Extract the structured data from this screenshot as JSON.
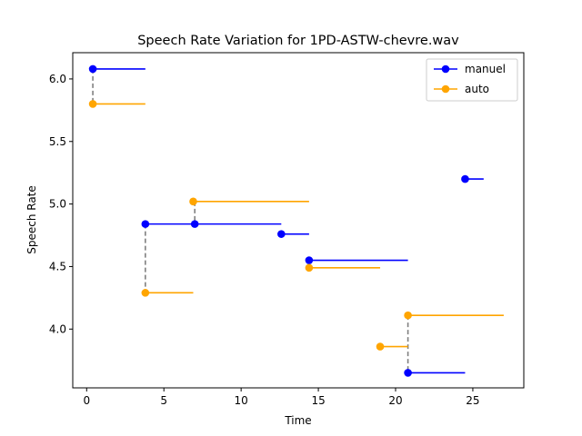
{
  "chart_data": {
    "type": "line",
    "title": "Speech Rate Variation for 1PD-ASTW-chevre.wav",
    "xlabel": "Time",
    "ylabel": "Speech Rate",
    "xlim": [
      -0.9,
      28.3
    ],
    "ylim": [
      3.53,
      6.21
    ],
    "xticks": [
      0,
      5,
      10,
      15,
      20,
      25
    ],
    "yticks": [
      4.0,
      4.5,
      5.0,
      5.5,
      6.0
    ],
    "xtick_labels": [
      "0",
      "5",
      "10",
      "15",
      "20",
      "25"
    ],
    "ytick_labels": [
      "4.0",
      "4.5",
      "5.0",
      "5.5",
      "6.0"
    ],
    "legend_position": "top-right",
    "series": [
      {
        "name": "manuel",
        "color": "#0000ff",
        "segments": [
          {
            "start": 0.4,
            "end": 3.8,
            "rate": 6.08
          },
          {
            "start": 3.8,
            "end": 7.0,
            "rate": 4.84
          },
          {
            "start": 7.0,
            "end": 12.6,
            "rate": 4.84
          },
          {
            "start": 12.6,
            "end": 14.4,
            "rate": 4.76
          },
          {
            "start": 14.4,
            "end": 20.8,
            "rate": 4.55
          },
          {
            "start": 20.8,
            "end": 24.5,
            "rate": 3.65
          },
          {
            "start": 24.5,
            "end": 25.7,
            "rate": 5.2
          }
        ]
      },
      {
        "name": "auto",
        "color": "#ffa500",
        "segments": [
          {
            "start": 0.4,
            "end": 3.8,
            "rate": 5.8
          },
          {
            "start": 3.8,
            "end": 6.9,
            "rate": 4.29
          },
          {
            "start": 6.9,
            "end": 14.4,
            "rate": 5.02
          },
          {
            "start": 14.4,
            "end": 19.0,
            "rate": 4.49
          },
          {
            "start": 19.0,
            "end": 20.8,
            "rate": 3.86
          },
          {
            "start": 20.8,
            "end": 27.0,
            "rate": 4.11
          }
        ]
      }
    ],
    "connectors": [
      {
        "x": 0.4,
        "y1": 6.08,
        "y2": 5.8
      },
      {
        "x": 3.8,
        "y1": 4.84,
        "y2": 4.29
      },
      {
        "x": 7.0,
        "y1": 5.02,
        "y2": 4.84
      },
      {
        "x": 14.4,
        "y1": 4.55,
        "y2": 4.49
      },
      {
        "x": 20.8,
        "y1": 4.11,
        "y2": 3.65
      }
    ],
    "connector_color": "#808080"
  }
}
